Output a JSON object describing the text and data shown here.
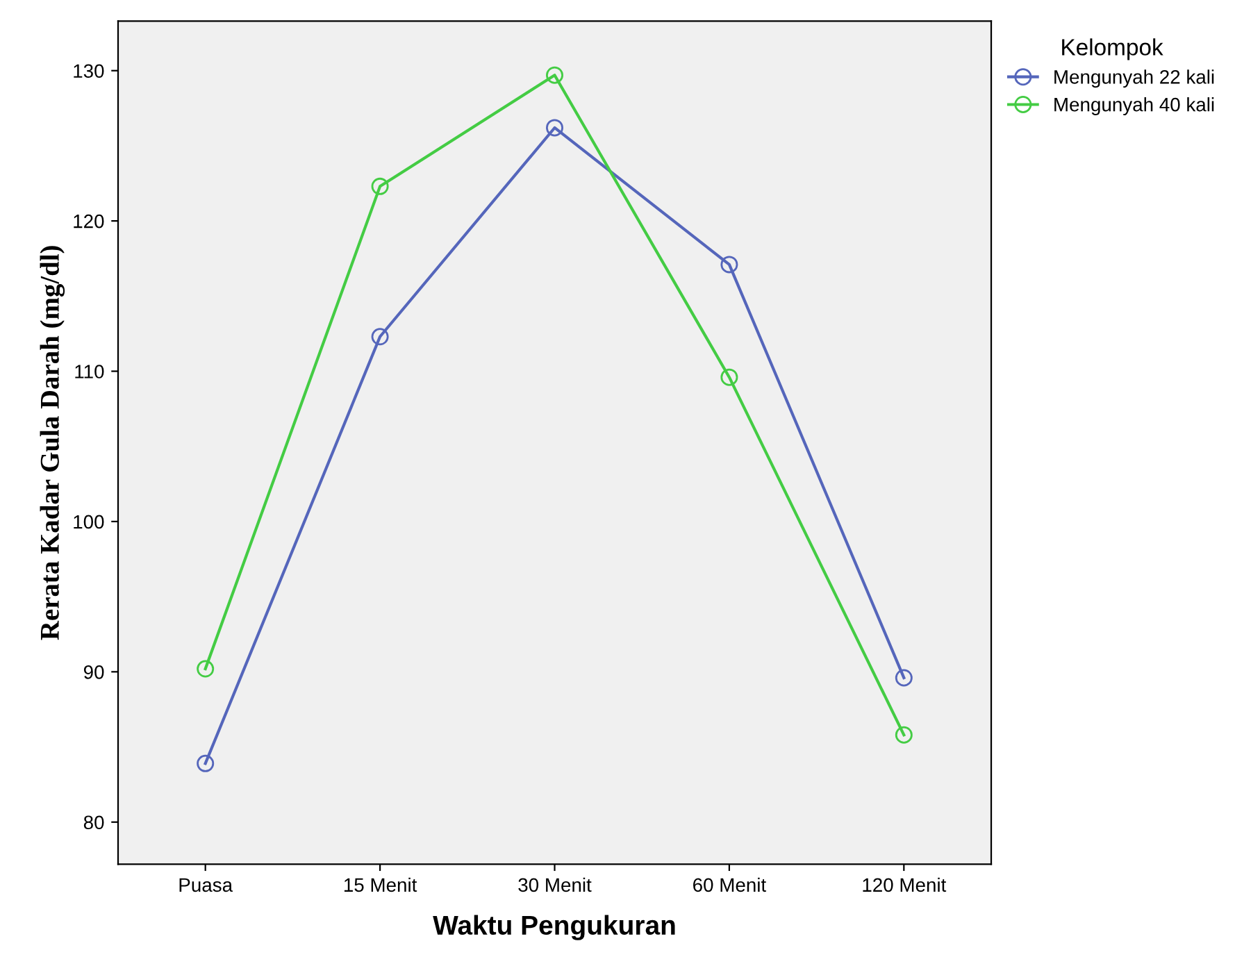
{
  "chart_data": {
    "type": "line",
    "xlabel": "Waktu Pengukuran",
    "ylabel": "Rerata Kadar Gula Darah (mg/dl)",
    "legend_title": "Kelompok",
    "legend": "top right",
    "marker": "circle",
    "line_style": "solid",
    "grid": false,
    "categories": [
      "Puasa",
      "15 Menit",
      "30 Menit",
      "60 Menit",
      "120 Menit"
    ],
    "ylim": [
      77.2,
      133.3
    ],
    "yticks": [
      80,
      90,
      100,
      110,
      120,
      130
    ],
    "series": [
      {
        "name": "Mengunyah 22 kali",
        "color": "#5566bb",
        "values": [
          83.9,
          112.3,
          126.2,
          117.1,
          89.6
        ]
      },
      {
        "name": "Mengunyah 40 kali",
        "color": "#44cc44",
        "values": [
          90.2,
          122.3,
          129.7,
          109.6,
          85.8
        ]
      }
    ]
  }
}
